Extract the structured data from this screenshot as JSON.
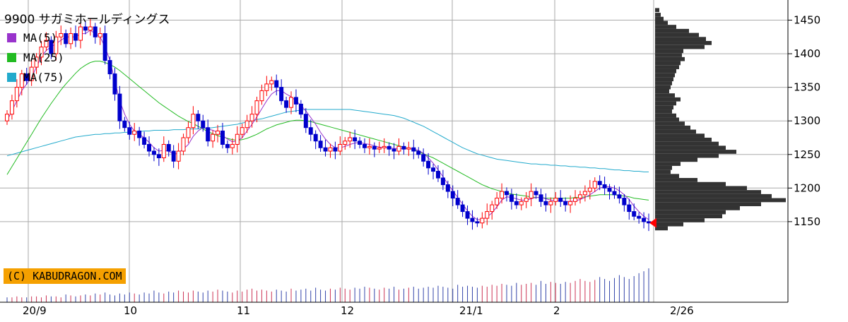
{
  "chart_data": {
    "type": "candlestick",
    "title": "9900 サガミホールディングス",
    "copyright": "(C) KABUDRAGON.COM",
    "y_ticks": [
      1450,
      1400,
      1350,
      1300,
      1250,
      1200,
      1150
    ],
    "ylim": [
      1030,
      1480
    ],
    "x_ticks": [
      "20/9",
      "10",
      "11",
      "12",
      "21/1",
      "2",
      "2/26"
    ],
    "legend": [
      {
        "name": "MA(5)",
        "color": "#9933cc"
      },
      {
        "name": "MA(25)",
        "color": "#22bb22"
      },
      {
        "name": "MA(75)",
        "color": "#22aacc"
      }
    ],
    "colors": {
      "up": "#ff0000",
      "down": "#0000cc",
      "profile": "#333333",
      "grid": "#aaaaaa",
      "marker": "#ff0000"
    },
    "last_close": 1148,
    "closes": [
      1310,
      1330,
      1350,
      1370,
      1360,
      1380,
      1395,
      1410,
      1420,
      1400,
      1425,
      1430,
      1415,
      1430,
      1420,
      1440,
      1435,
      1440,
      1425,
      1430,
      1390,
      1370,
      1340,
      1300,
      1290,
      1280,
      1285,
      1275,
      1265,
      1255,
      1250,
      1245,
      1265,
      1255,
      1240,
      1255,
      1275,
      1290,
      1310,
      1300,
      1290,
      1270,
      1280,
      1285,
      1265,
      1260,
      1265,
      1280,
      1290,
      1300,
      1310,
      1330,
      1345,
      1355,
      1360,
      1350,
      1330,
      1320,
      1335,
      1325,
      1310,
      1290,
      1280,
      1270,
      1260,
      1255,
      1260,
      1255,
      1265,
      1270,
      1275,
      1270,
      1265,
      1260,
      1262,
      1258,
      1260,
      1262,
      1258,
      1255,
      1262,
      1258,
      1260,
      1255,
      1250,
      1240,
      1230,
      1225,
      1215,
      1205,
      1195,
      1185,
      1175,
      1165,
      1155,
      1150,
      1148,
      1155,
      1165,
      1175,
      1185,
      1195,
      1190,
      1180,
      1175,
      1180,
      1185,
      1195,
      1190,
      1180,
      1175,
      1180,
      1185,
      1180,
      1175,
      1180,
      1185,
      1190,
      1195,
      1200,
      1210,
      1205,
      1200,
      1195,
      1190,
      1185,
      1175,
      1165,
      1158,
      1155,
      1150,
      1148
    ],
    "ma5": [
      1300,
      1315,
      1330,
      1345,
      1355,
      1365,
      1380,
      1395,
      1405,
      1410,
      1415,
      1420,
      1425,
      1425,
      1425,
      1430,
      1430,
      1435,
      1430,
      1425,
      1410,
      1390,
      1360,
      1330,
      1310,
      1295,
      1285,
      1280,
      1275,
      1268,
      1260,
      1255,
      1256,
      1255,
      1250,
      1253,
      1258,
      1265,
      1277,
      1285,
      1290,
      1288,
      1286,
      1283,
      1278,
      1273,
      1269,
      1270,
      1275,
      1285,
      1295,
      1306,
      1318,
      1330,
      1340,
      1345,
      1345,
      1340,
      1336,
      1330,
      1323,
      1315,
      1305,
      1295,
      1283,
      1273,
      1265,
      1260,
      1260,
      1262,
      1265,
      1267,
      1268,
      1266,
      1265,
      1263,
      1261,
      1260,
      1260,
      1259,
      1259,
      1259,
      1259,
      1258,
      1256,
      1252,
      1245,
      1237,
      1227,
      1217,
      1206,
      1196,
      1186,
      1176,
      1166,
      1158,
      1153,
      1153,
      1157,
      1163,
      1172,
      1182,
      1187,
      1186,
      1184,
      1182,
      1182,
      1184,
      1186,
      1186,
      1184,
      1182,
      1181,
      1181,
      1180,
      1180,
      1181,
      1183,
      1186,
      1190,
      1195,
      1200,
      1202,
      1202,
      1200,
      1196,
      1190,
      1183,
      1173,
      1165,
      1158,
      1153
    ],
    "ma25": [
      1220,
      1232,
      1244,
      1256,
      1268,
      1280,
      1292,
      1304,
      1315,
      1326,
      1336,
      1346,
      1355,
      1363,
      1371,
      1378,
      1383,
      1387,
      1389,
      1389,
      1387,
      1384,
      1380,
      1375,
      1369,
      1363,
      1357,
      1351,
      1345,
      1339,
      1333,
      1327,
      1322,
      1317,
      1312,
      1307,
      1303,
      1299,
      1296,
      1292,
      1288,
      1284,
      1281,
      1278,
      1276,
      1274,
      1272,
      1271,
      1272,
      1274,
      1277,
      1280,
      1284,
      1288,
      1291,
      1294,
      1296,
      1298,
      1300,
      1301,
      1301,
      1300,
      1299,
      1297,
      1295,
      1293,
      1291,
      1289,
      1287,
      1285,
      1283,
      1281,
      1279,
      1277,
      1275,
      1273,
      1271,
      1269,
      1267,
      1265,
      1263,
      1261,
      1259,
      1257,
      1254,
      1251,
      1248,
      1245,
      1241,
      1237,
      1233,
      1229,
      1225,
      1221,
      1217,
      1213,
      1209,
      1205,
      1202,
      1199,
      1197,
      1195,
      1193,
      1191,
      1190,
      1189,
      1188,
      1187,
      1186,
      1186,
      1185,
      1185,
      1185,
      1185,
      1185,
      1185,
      1186,
      1186,
      1187,
      1188,
      1189,
      1190,
      1190,
      1190,
      1190,
      1189,
      1188,
      1187,
      1185,
      1184,
      1183,
      1182
    ],
    "ma75": [
      1248,
      1250,
      1252,
      1254,
      1256,
      1258,
      1260,
      1262,
      1264,
      1266,
      1268,
      1270,
      1272,
      1274,
      1276,
      1277,
      1278,
      1279,
      1280,
      1280,
      1281,
      1281,
      1282,
      1282,
      1283,
      1283,
      1284,
      1284,
      1285,
      1285,
      1286,
      1286,
      1286,
      1286,
      1287,
      1287,
      1287,
      1288,
      1288,
      1288,
      1289,
      1289,
      1290,
      1291,
      1292,
      1293,
      1294,
      1295,
      1297,
      1298,
      1300,
      1302,
      1303,
      1305,
      1307,
      1309,
      1311,
      1313,
      1314,
      1315,
      1316,
      1317,
      1317,
      1317,
      1317,
      1317,
      1317,
      1317,
      1317,
      1317,
      1317,
      1316,
      1315,
      1314,
      1313,
      1312,
      1311,
      1310,
      1309,
      1308,
      1306,
      1304,
      1301,
      1298,
      1295,
      1292,
      1288,
      1284,
      1280,
      1276,
      1272,
      1268,
      1264,
      1260,
      1257,
      1254,
      1251,
      1249,
      1247,
      1245,
      1243,
      1242,
      1241,
      1240,
      1239,
      1238,
      1237,
      1236,
      1236,
      1235,
      1235,
      1234,
      1234,
      1233,
      1233,
      1232,
      1232,
      1231,
      1231,
      1230,
      1230,
      1229,
      1229,
      1228,
      1227,
      1227,
      1226,
      1226,
      1225,
      1225,
      1224,
      1224
    ],
    "volume_profile": [
      [
        1465,
        6
      ],
      [
        1458,
        8
      ],
      [
        1452,
        12
      ],
      [
        1446,
        18
      ],
      [
        1440,
        30
      ],
      [
        1434,
        48
      ],
      [
        1428,
        62
      ],
      [
        1422,
        72
      ],
      [
        1416,
        80
      ],
      [
        1410,
        70
      ],
      [
        1404,
        40
      ],
      [
        1398,
        38
      ],
      [
        1392,
        42
      ],
      [
        1386,
        36
      ],
      [
        1380,
        34
      ],
      [
        1374,
        30
      ],
      [
        1368,
        28
      ],
      [
        1362,
        26
      ],
      [
        1356,
        24
      ],
      [
        1350,
        22
      ],
      [
        1344,
        20
      ],
      [
        1338,
        28
      ],
      [
        1332,
        36
      ],
      [
        1326,
        30
      ],
      [
        1320,
        26
      ],
      [
        1314,
        24
      ],
      [
        1308,
        30
      ],
      [
        1302,
        34
      ],
      [
        1296,
        42
      ],
      [
        1290,
        50
      ],
      [
        1284,
        58
      ],
      [
        1278,
        70
      ],
      [
        1272,
        80
      ],
      [
        1266,
        90
      ],
      [
        1260,
        100
      ],
      [
        1254,
        115
      ],
      [
        1248,
        90
      ],
      [
        1242,
        60
      ],
      [
        1236,
        36
      ],
      [
        1230,
        24
      ],
      [
        1224,
        22
      ],
      [
        1218,
        34
      ],
      [
        1212,
        60
      ],
      [
        1206,
        100
      ],
      [
        1200,
        130
      ],
      [
        1194,
        150
      ],
      [
        1188,
        165
      ],
      [
        1182,
        185
      ],
      [
        1176,
        150
      ],
      [
        1170,
        120
      ],
      [
        1164,
        100
      ],
      [
        1158,
        95
      ],
      [
        1152,
        70
      ],
      [
        1146,
        40
      ],
      [
        1140,
        18
      ]
    ],
    "volumes": [
      5,
      5,
      6,
      5,
      5,
      6,
      6,
      5,
      7,
      6,
      6,
      5,
      8,
      7,
      6,
      7,
      8,
      7,
      9,
      8,
      10,
      8,
      7,
      9,
      8,
      10,
      9,
      8,
      10,
      9,
      12,
      10,
      9,
      11,
      10,
      12,
      11,
      10,
      12,
      11,
      10,
      12,
      11,
      13,
      12,
      11,
      10,
      12,
      11,
      13,
      14,
      12,
      13,
      12,
      11,
      13,
      12,
      11,
      14,
      12,
      13,
      14,
      12,
      15,
      13,
      12,
      14,
      13,
      15,
      14,
      13,
      15,
      14,
      16,
      15,
      14,
      13,
      15,
      14,
      16,
      13,
      14,
      15,
      16,
      14,
      15,
      16,
      15,
      17,
      16,
      15,
      14,
      18,
      16,
      17,
      16,
      15,
      17,
      16,
      18,
      17,
      19,
      18,
      17,
      20,
      18,
      19,
      20,
      18,
      22,
      19,
      21,
      20,
      19,
      21,
      20,
      22,
      24,
      22,
      21,
      23,
      26,
      24,
      22,
      25,
      28,
      26,
      24,
      27,
      30,
      32,
      35
    ]
  }
}
